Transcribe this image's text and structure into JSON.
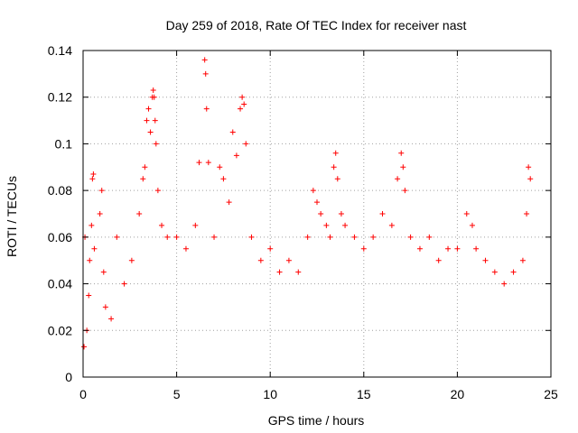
{
  "chart_data": {
    "type": "scatter",
    "title": "Day 259 of 2018, Rate Of TEC Index for receiver nast",
    "xlabel": "GPS time / hours",
    "ylabel": "ROTI / TECUs",
    "xlim": [
      0,
      25
    ],
    "ylim": [
      0,
      0.14
    ],
    "xticks": [
      0,
      5,
      10,
      15,
      20,
      25
    ],
    "xtick_labels": [
      "0",
      "5",
      "10",
      "15",
      "20",
      "25"
    ],
    "yticks": [
      0,
      0.02,
      0.04,
      0.06,
      0.08,
      0.1,
      0.12,
      0.14
    ],
    "ytick_labels": [
      "0",
      "0.02",
      "0.04",
      "0.06",
      "0.08",
      "0.1",
      "0.12",
      "0.14"
    ],
    "grid": true,
    "marker": "+",
    "color": "#ff0000",
    "series": [
      {
        "name": "ROTI",
        "x": [
          0.05,
          0.1,
          0.2,
          0.3,
          0.35,
          0.45,
          0.5,
          0.55,
          0.6,
          0.9,
          1.0,
          1.1,
          1.2,
          1.5,
          1.8,
          2.2,
          2.6,
          3.0,
          3.2,
          3.3,
          3.4,
          3.5,
          3.6,
          3.7,
          3.75,
          3.8,
          3.85,
          3.9,
          4.0,
          4.2,
          4.5,
          5.0,
          5.5,
          6.0,
          6.2,
          6.5,
          6.55,
          6.6,
          6.7,
          7.0,
          7.3,
          7.5,
          7.8,
          8.0,
          8.2,
          8.4,
          8.5,
          8.6,
          8.7,
          9.0,
          9.5,
          10.0,
          10.5,
          11.0,
          11.5,
          12.0,
          12.3,
          12.5,
          12.7,
          13.0,
          13.2,
          13.4,
          13.5,
          13.6,
          13.8,
          14.0,
          14.5,
          15.0,
          15.5,
          16.0,
          16.5,
          16.8,
          17.0,
          17.1,
          17.2,
          17.5,
          18.0,
          18.5,
          19.0,
          19.5,
          20.0,
          20.5,
          20.8,
          21.0,
          21.5,
          22.0,
          22.5,
          23.0,
          23.5,
          23.7,
          23.8,
          23.9
        ],
        "y": [
          0.013,
          0.06,
          0.02,
          0.035,
          0.05,
          0.065,
          0.085,
          0.087,
          0.055,
          0.07,
          0.08,
          0.045,
          0.03,
          0.025,
          0.06,
          0.04,
          0.05,
          0.07,
          0.085,
          0.09,
          0.11,
          0.115,
          0.105,
          0.12,
          0.123,
          0.12,
          0.11,
          0.1,
          0.08,
          0.065,
          0.06,
          0.06,
          0.055,
          0.065,
          0.092,
          0.136,
          0.13,
          0.115,
          0.092,
          0.06,
          0.09,
          0.085,
          0.075,
          0.105,
          0.095,
          0.115,
          0.12,
          0.117,
          0.1,
          0.06,
          0.05,
          0.055,
          0.045,
          0.05,
          0.045,
          0.06,
          0.08,
          0.075,
          0.07,
          0.065,
          0.06,
          0.09,
          0.096,
          0.085,
          0.07,
          0.065,
          0.06,
          0.055,
          0.06,
          0.07,
          0.065,
          0.085,
          0.096,
          0.09,
          0.08,
          0.06,
          0.055,
          0.06,
          0.05,
          0.055,
          0.055,
          0.07,
          0.065,
          0.055,
          0.05,
          0.045,
          0.04,
          0.045,
          0.05,
          0.07,
          0.09,
          0.085
        ]
      }
    ]
  }
}
